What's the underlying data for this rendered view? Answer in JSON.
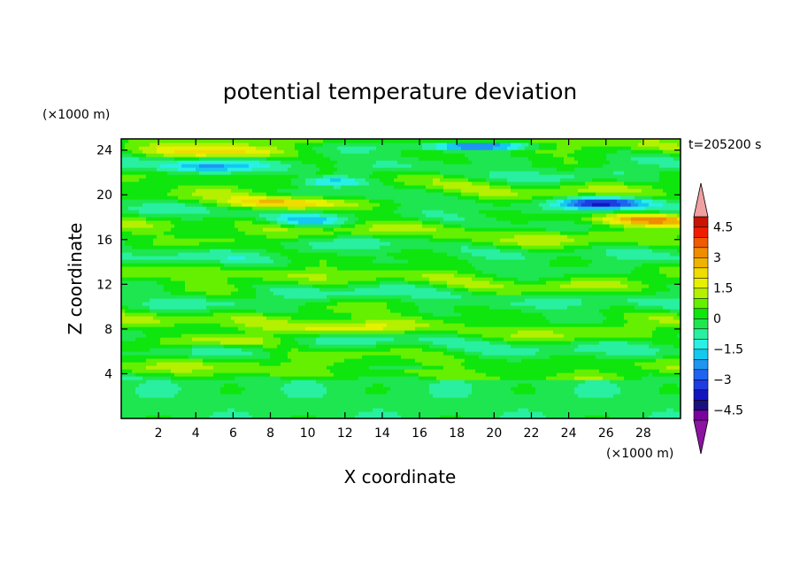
{
  "chart_data": {
    "type": "heatmap",
    "title": "potential temperature deviation",
    "xlabel": "X coordinate",
    "ylabel": "Z coordinate",
    "x_unit": "(×1000 m)",
    "y_unit": "(×1000 m)",
    "time_label": "t=205200 s",
    "xlim": [
      0,
      30
    ],
    "ylim": [
      0,
      25
    ],
    "x_ticks": [
      2,
      4,
      6,
      8,
      10,
      12,
      14,
      16,
      18,
      20,
      22,
      24,
      26,
      28
    ],
    "y_ticks": [
      4,
      8,
      12,
      16,
      20,
      24
    ],
    "colorbar": {
      "levels": [
        -5,
        -4.5,
        -4,
        -3.5,
        -3,
        -2.5,
        -2,
        -1.5,
        -1,
        -0.5,
        0,
        0.5,
        1,
        1.5,
        2,
        2.5,
        3,
        3.5,
        4,
        4.5,
        5
      ],
      "tick_labels": [
        "4.5",
        "3",
        "1.5",
        "0",
        "−1.5",
        "−3",
        "−4.5"
      ],
      "tick_values": [
        4.5,
        3,
        1.5,
        0,
        -1.5,
        -3,
        -4.5
      ],
      "colors": [
        "#7a00a0",
        "#1a1080",
        "#1414c0",
        "#1e3ce0",
        "#1e64f0",
        "#1e96f0",
        "#14c8f0",
        "#28f0e6",
        "#28f0a0",
        "#1ee650",
        "#0ee60e",
        "#64f000",
        "#b4f000",
        "#e6f000",
        "#f0dc00",
        "#f0b400",
        "#f08c00",
        "#f05a00",
        "#f01e00",
        "#c81400"
      ],
      "extend_low_color": "#8c14a0",
      "extend_high_color": "#f0a0a0"
    },
    "features": [
      {
        "x": 9,
        "z": 19.3,
        "value": 3.0,
        "shape": "warm band"
      },
      {
        "x": 28,
        "z": 17.8,
        "value": 3.0,
        "shape": "warm band"
      },
      {
        "x": 25.8,
        "z": 19.3,
        "value": -4.0,
        "shape": "cold core"
      },
      {
        "x": 11.5,
        "z": 21.2,
        "value": -3.0,
        "shape": "cold core"
      },
      {
        "x": 4.5,
        "z": 22.5,
        "value": -2.0,
        "shape": "cold core"
      },
      {
        "x": 19.5,
        "z": 24.4,
        "value": -3.5,
        "shape": "cold band top"
      },
      {
        "x": 10,
        "z": 17.7,
        "value": -2.0,
        "shape": "cold core"
      },
      {
        "x": 15.5,
        "z": 4.7,
        "value": -2.0,
        "shape": "thin cold line"
      },
      {
        "x": 5,
        "z": 23.8,
        "value": 2.0,
        "shape": "warm band"
      },
      {
        "x": 12,
        "z": 8,
        "value": 1.5,
        "shape": "warm band"
      },
      {
        "x": 6,
        "z": 7,
        "value": 1.5,
        "shape": "warm band"
      }
    ]
  }
}
